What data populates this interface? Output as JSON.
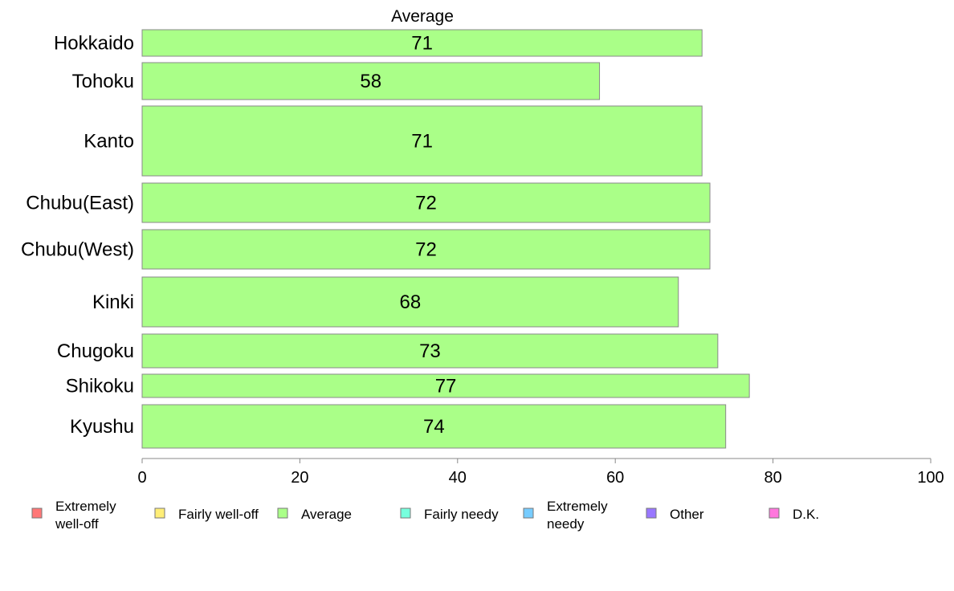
{
  "chart_data": {
    "type": "bar",
    "orientation": "horizontal",
    "title": "Average",
    "categories": [
      "Hokkaido",
      "Tohoku",
      "Kanto",
      "Chubu(East)",
      "Chubu(West)",
      "Kinki",
      "Chugoku",
      "Shikoku",
      "Kyushu"
    ],
    "values": [
      71,
      58,
      71,
      72,
      72,
      68,
      73,
      77,
      74
    ],
    "xlim": [
      0,
      100
    ],
    "xticks": [
      "0",
      "20",
      "40",
      "60",
      "80",
      "100"
    ],
    "grid": false,
    "bar_color": "#aaff88",
    "bar_edge_color": "#888888",
    "legend_placement": "bottom",
    "legend": [
      {
        "label": "Extremely well-off",
        "lines": [
          "Extremely",
          "well-off"
        ],
        "color": "#ff7777"
      },
      {
        "label": "Fairly well-off",
        "lines": [
          "Fairly well-off"
        ],
        "color": "#ffee77"
      },
      {
        "label": "Average",
        "lines": [
          "Average"
        ],
        "color": "#aaff88"
      },
      {
        "label": "Fairly needy",
        "lines": [
          "Fairly needy"
        ],
        "color": "#77ffdd"
      },
      {
        "label": "Extremely needy",
        "lines": [
          "Extremely",
          "needy"
        ],
        "color": "#77ccff"
      },
      {
        "label": "Other",
        "lines": [
          "Other"
        ],
        "color": "#9977ff"
      },
      {
        "label": "D.K.",
        "lines": [
          "D.K."
        ],
        "color": "#ff77dd"
      }
    ]
  }
}
